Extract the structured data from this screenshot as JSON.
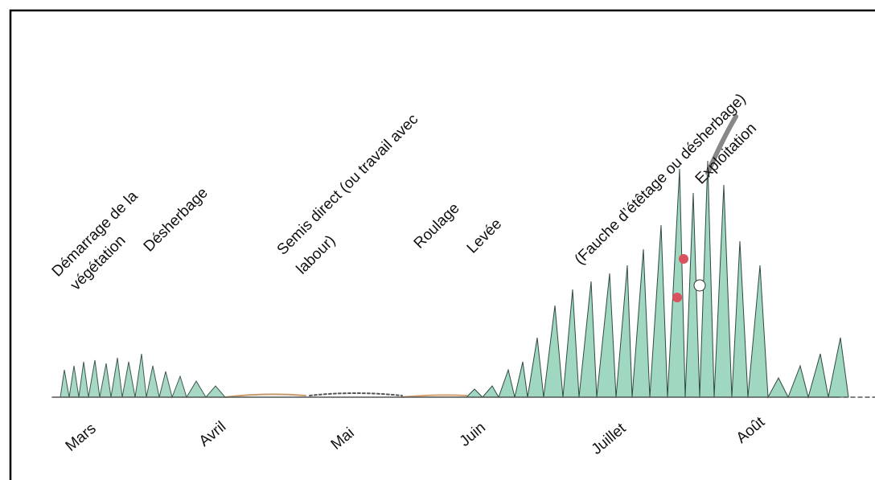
{
  "events": [
    {
      "lines": [
        "Démarrage de la",
        "végétation"
      ]
    },
    {
      "lines": [
        "Désherbage"
      ]
    },
    {
      "lines": [
        "Semis direct (ou travail avec",
        "labour)"
      ]
    },
    {
      "lines": [
        "Roulage"
      ]
    },
    {
      "lines": [
        "Levée"
      ]
    },
    {
      "lines": [
        "(Fauche d’étêtage ou désherbage)"
      ]
    },
    {
      "lines": [
        "Exploitation"
      ]
    }
  ],
  "months": [
    "Mars",
    "Avril",
    "Mai",
    "Juin",
    "Juillet",
    "Août"
  ]
}
